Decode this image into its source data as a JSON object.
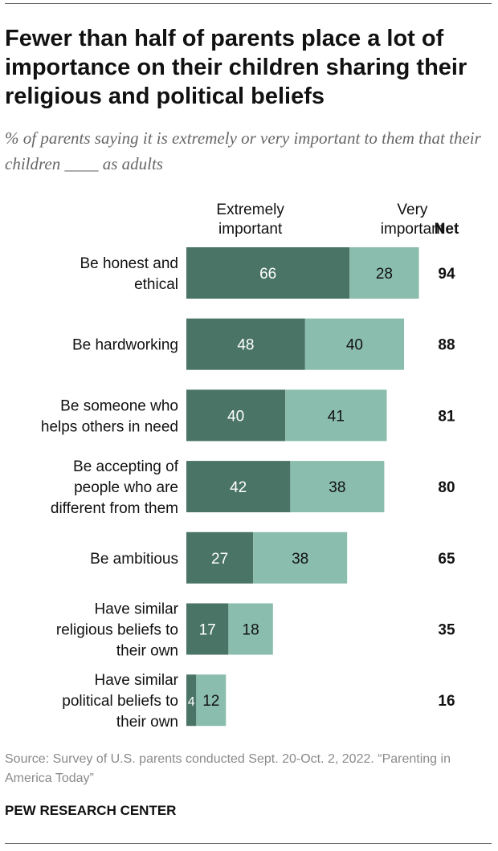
{
  "title": "Fewer than half of parents place a lot of importance on their children sharing their religious and political beliefs",
  "subtitle": "% of parents saying it is extremely or very important to them that their children ____ as adults",
  "colors": {
    "extremely": "#4a7466",
    "very": "#8abdae",
    "text_dark": "#111111",
    "text_light": "#ffffff"
  },
  "chart_data": {
    "type": "bar",
    "orientation": "horizontal",
    "stacked": true,
    "xlim": [
      0,
      100
    ],
    "legend_placement": "top",
    "net_label": "Net",
    "categories": [
      [
        "Be honest and",
        "ethical"
      ],
      [
        "Be hardworking"
      ],
      [
        "Be someone who",
        "helps others in need"
      ],
      [
        "Be accepting of",
        "people who are",
        "different from them"
      ],
      [
        "Be ambitious"
      ],
      [
        "Have similar",
        "religious beliefs to",
        "their own"
      ],
      [
        "Have similar",
        "political beliefs to",
        "their own"
      ]
    ],
    "series": [
      {
        "name": "Extremely important",
        "legend_lines": [
          "Extremely",
          "important"
        ],
        "values": [
          66,
          48,
          40,
          42,
          27,
          17,
          4
        ]
      },
      {
        "name": "Very important",
        "legend_lines": [
          "Very",
          "important"
        ],
        "values": [
          28,
          40,
          41,
          38,
          38,
          18,
          12
        ]
      }
    ],
    "net": [
      94,
      88,
      81,
      80,
      65,
      35,
      16
    ]
  },
  "source": "Source: Survey of U.S. parents conducted Sept. 20-Oct. 2, 2022. “Parenting in America Today”",
  "brand": "PEW RESEARCH CENTER"
}
